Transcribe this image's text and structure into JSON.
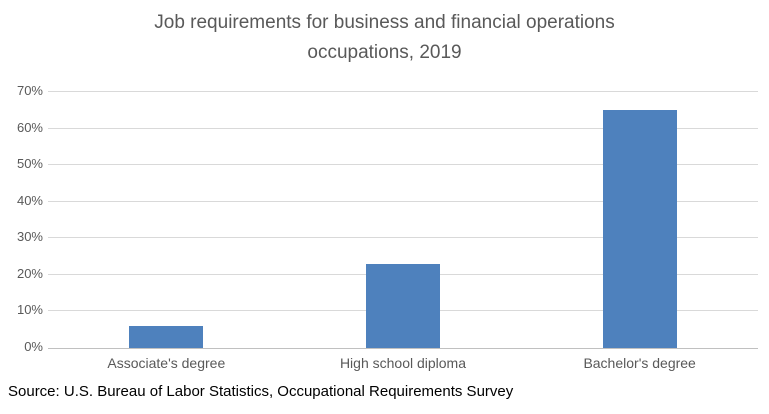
{
  "title": {
    "line1": "Job requirements for business and financial operations",
    "line2": "occupations, 2019"
  },
  "source_note": "Source: U.S. Bureau of Labor Statistics, Occupational Requirements Survey",
  "chart_data": {
    "type": "bar",
    "title": "Job requirements for business and financial operations occupations, 2019",
    "categories": [
      "Associate's degree",
      "High school diploma",
      "Bachelor's degree"
    ],
    "values": [
      6,
      23,
      65
    ],
    "xlabel": "",
    "ylabel": "",
    "ylim": [
      0,
      70
    ],
    "ytick_step": 10,
    "ytick_labels": [
      "0%",
      "10%",
      "20%",
      "30%",
      "40%",
      "50%",
      "60%",
      "70%"
    ],
    "grid": true,
    "legend": false,
    "annotation": "Source: U.S. Bureau of Labor Statistics, Occupational Requirements Survey",
    "colors": {
      "bar": "#4E81BD",
      "gridline": "#D9D9D9",
      "axis_line": "#C0C0C0",
      "title_text": "#595959",
      "tick_text": "#595959",
      "source_text": "#000000"
    }
  }
}
